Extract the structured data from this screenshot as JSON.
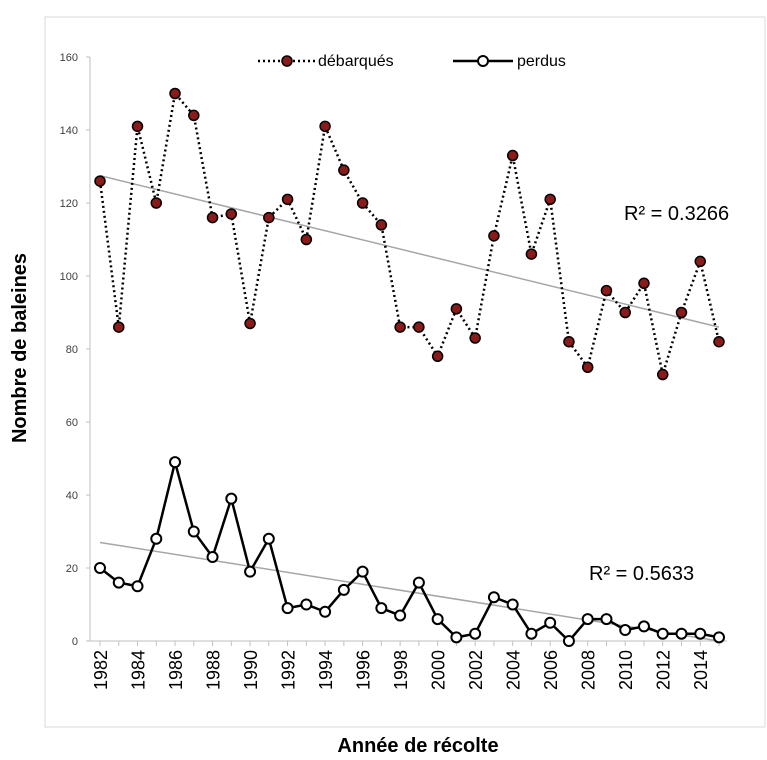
{
  "chart_data": {
    "type": "line",
    "title": "",
    "xlabel": "Année de récolte",
    "ylabel": "Nombre de baleines",
    "ylim": [
      0,
      160
    ],
    "yticks": [
      0,
      20,
      40,
      60,
      80,
      100,
      120,
      140,
      160
    ],
    "xticks": [
      1982,
      1984,
      1986,
      1988,
      1990,
      1992,
      1994,
      1996,
      1998,
      2000,
      2002,
      2004,
      2006,
      2008,
      2010,
      2012,
      2014
    ],
    "x": [
      1982,
      1983,
      1984,
      1985,
      1986,
      1987,
      1988,
      1989,
      1990,
      1991,
      1992,
      1993,
      1994,
      1995,
      1996,
      1997,
      1998,
      1999,
      2000,
      2001,
      2002,
      2003,
      2004,
      2005,
      2006,
      2007,
      2008,
      2009,
      2010,
      2011,
      2012,
      2013,
      2014,
      2015
    ],
    "grid": false,
    "legend": "top-center",
    "series": [
      {
        "name": "débarqués",
        "style": "dotted",
        "marker_color": "#8b1a1a",
        "values": [
          126,
          86,
          141,
          120,
          150,
          144,
          116,
          117,
          87,
          116,
          121,
          110,
          141,
          129,
          120,
          114,
          86,
          86,
          78,
          91,
          83,
          111,
          133,
          106,
          121,
          82,
          75,
          96,
          90,
          98,
          73,
          90,
          104,
          82
        ],
        "trend": {
          "r2_label": "R² = 0.3266",
          "start": 127.5,
          "end": 86
        }
      },
      {
        "name": "perdus",
        "style": "solid",
        "marker_color": "#ffffff",
        "values": [
          20,
          16,
          15,
          28,
          49,
          30,
          23,
          39,
          19,
          28,
          9,
          10,
          8,
          14,
          19,
          9,
          7,
          16,
          6,
          1,
          2,
          12,
          10,
          2,
          5,
          0,
          6,
          6,
          3,
          4,
          2,
          2,
          2,
          1
        ],
        "trend": {
          "r2_label": "R² = 0.5633",
          "start": 27,
          "end": 0
        }
      }
    ]
  }
}
